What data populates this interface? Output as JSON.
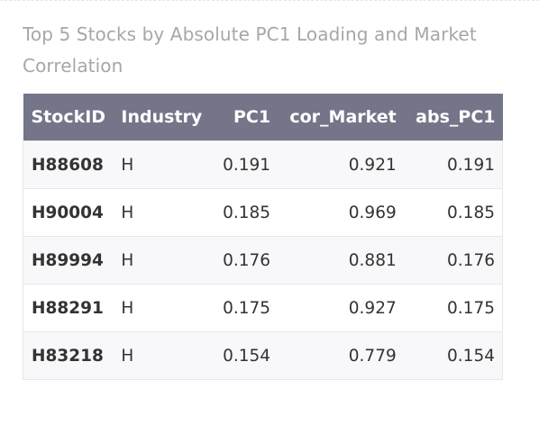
{
  "caption": "Top 5 Stocks by Absolute PC1 Loading and Market Correlation",
  "columns": [
    "StockID",
    "Industry",
    "PC1",
    "cor_Market",
    "abs_PC1"
  ],
  "rows": [
    [
      "H88608",
      "H",
      "0.191",
      "0.921",
      "0.191"
    ],
    [
      "H90004",
      "H",
      "0.185",
      "0.969",
      "0.185"
    ],
    [
      "H89994",
      "H",
      "0.176",
      "0.881",
      "0.176"
    ],
    [
      "H88291",
      "H",
      "0.175",
      "0.927",
      "0.175"
    ],
    [
      "H83218",
      "H",
      "0.154",
      "0.779",
      "0.154"
    ]
  ]
}
